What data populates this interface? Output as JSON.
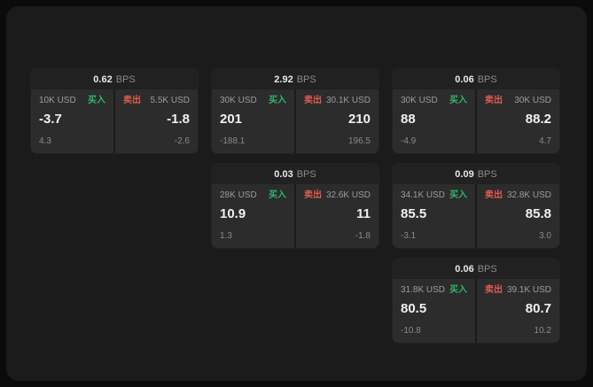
{
  "unit_label": "BPS",
  "buy_label": "买入",
  "sell_label": "卖出",
  "colors": {
    "buy": "#33b469",
    "sell": "#e05b50"
  },
  "cards": [
    {
      "spread": "0.62",
      "buy_size": "10K USD",
      "buy_price": "-3.7",
      "buy_delta": "4.3",
      "sell_size": "5.5K USD",
      "sell_price": "-1.8",
      "sell_delta": "-2.6"
    },
    {
      "spread": "2.92",
      "buy_size": "30K USD",
      "buy_price": "201",
      "buy_delta": "-188.1",
      "sell_size": "30.1K USD",
      "sell_price": "210",
      "sell_delta": "196.5"
    },
    {
      "spread": "0.06",
      "buy_size": "30K USD",
      "buy_price": "88",
      "buy_delta": "-4.9",
      "sell_size": "30K USD",
      "sell_price": "88.2",
      "sell_delta": "4.7"
    },
    {
      "spread": "0.03",
      "buy_size": "28K USD",
      "buy_price": "10.9",
      "buy_delta": "1.3",
      "sell_size": "32.6K USD",
      "sell_price": "11",
      "sell_delta": "-1.8"
    },
    {
      "spread": "0.09",
      "buy_size": "34.1K USD",
      "buy_price": "85.5",
      "buy_delta": "-3.1",
      "sell_size": "32.8K USD",
      "sell_price": "85.8",
      "sell_delta": "3.0"
    },
    {
      "spread": "0.06",
      "buy_size": "31.8K USD",
      "buy_price": "80.5",
      "buy_delta": "-10.8",
      "sell_size": "39.1K USD",
      "sell_price": "80.7",
      "sell_delta": "10.2"
    }
  ]
}
